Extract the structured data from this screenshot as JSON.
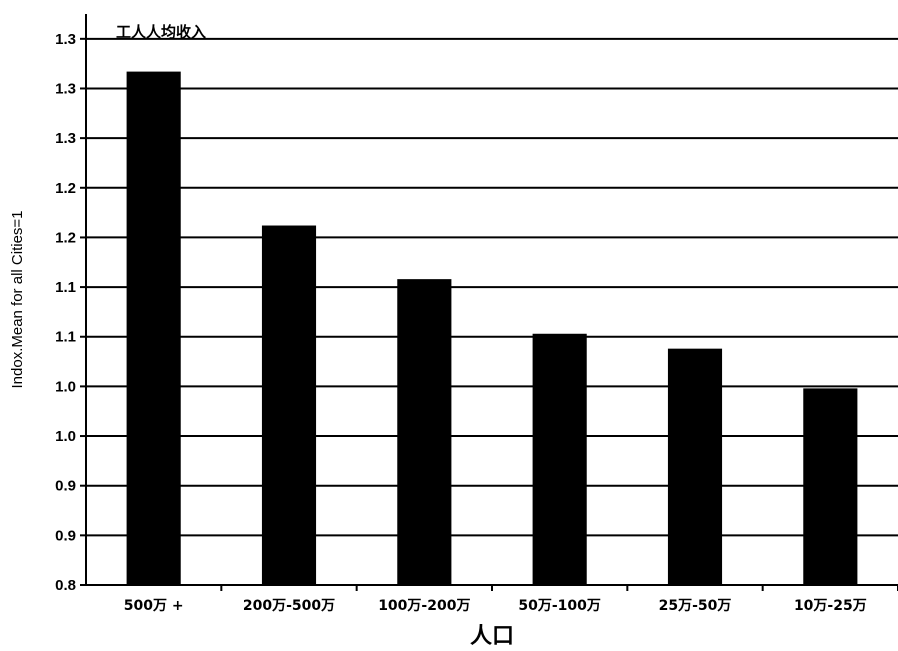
{
  "chart_data": {
    "type": "bar",
    "categories": [
      "500万 +",
      "200万-500万",
      "100万-200万",
      "50万-100万",
      "25万-50万",
      "10万-25万"
    ],
    "values": [
      1.317,
      1.162,
      1.108,
      1.053,
      1.038,
      0.998
    ],
    "ylabel": "Indox.Mean for all Cities=1",
    "xlabel": "人口",
    "annotation": "工人人均收入",
    "ylim": [
      0.8,
      1.375
    ],
    "y_ticks": [
      0.8,
      0.85,
      0.9,
      0.95,
      1.0,
      1.05,
      1.1,
      1.15,
      1.2,
      1.25,
      1.3,
      1.35
    ],
    "y_tick_labels": [
      "0.8",
      "0.9",
      "0.9",
      "1.0",
      "1.0",
      "1.1",
      "1.1",
      "1.2",
      "1.2",
      "1.3",
      "1.3",
      "1.3"
    ],
    "grid": true,
    "bar_color": "#000000"
  }
}
